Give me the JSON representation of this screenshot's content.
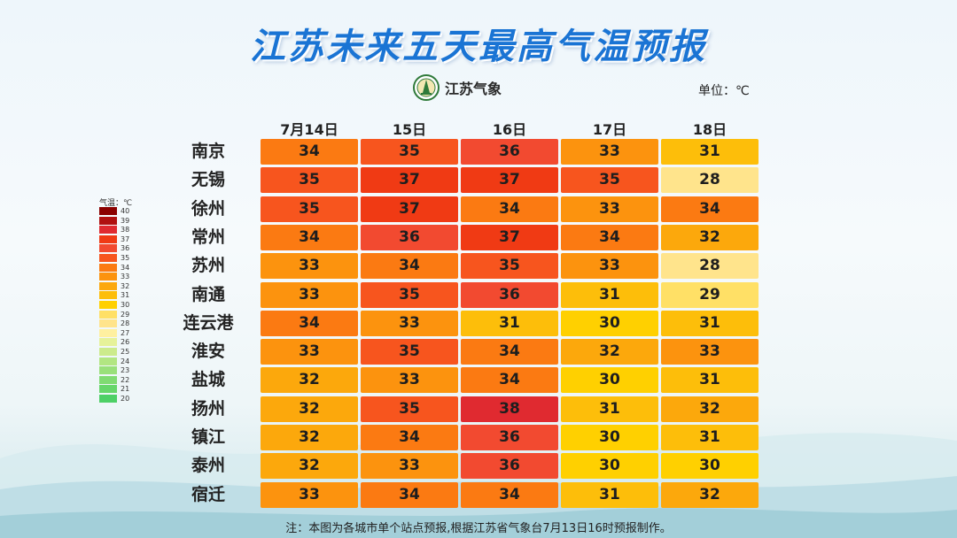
{
  "title": "江苏未来五天最高气温预报",
  "logo": {
    "text": "江苏气象",
    "icon": "jiangsu-meteorology-emblem-icon"
  },
  "unit": "单位：℃",
  "legend": {
    "title": "气温：℃",
    "labels": [
      "40",
      "39",
      "38",
      "37",
      "36",
      "35",
      "34",
      "33",
      "32",
      "31",
      "30",
      "29",
      "28",
      "27",
      "26",
      "25",
      "24",
      "23",
      "22",
      "21",
      "20"
    ]
  },
  "note": "注：本图为各城市单个站点预报,根据江苏省气象台7月13日16时预报制作。",
  "chart_data": {
    "type": "table",
    "title": "江苏未来五天最高气温预报",
    "columns": [
      "7月14日",
      "15日",
      "16日",
      "17日",
      "18日"
    ],
    "rows": [
      "南京",
      "无锡",
      "徐州",
      "常州",
      "苏州",
      "南通",
      "连云港",
      "淮安",
      "盐城",
      "扬州",
      "镇江",
      "泰州",
      "宿迁"
    ],
    "values": [
      [
        34,
        35,
        36,
        33,
        31
      ],
      [
        35,
        37,
        37,
        35,
        28
      ],
      [
        35,
        37,
        34,
        33,
        34
      ],
      [
        34,
        36,
        37,
        34,
        32
      ],
      [
        33,
        34,
        35,
        33,
        28
      ],
      [
        33,
        35,
        36,
        31,
        29
      ],
      [
        34,
        33,
        31,
        30,
        31
      ],
      [
        33,
        35,
        34,
        32,
        33
      ],
      [
        32,
        33,
        34,
        30,
        31
      ],
      [
        32,
        35,
        38,
        31,
        32
      ],
      [
        32,
        34,
        36,
        30,
        31
      ],
      [
        32,
        33,
        36,
        30,
        30
      ],
      [
        33,
        34,
        34,
        31,
        32
      ]
    ],
    "color_scale": {
      "40": "#8b0000",
      "39": "#b01010",
      "38": "#e02a30",
      "37": "#f03a14",
      "36": "#f24a30",
      "35": "#f7551e",
      "34": "#fb7a12",
      "33": "#fc930e",
      "32": "#fca80c",
      "31": "#fdbe0a",
      "30": "#ffd000",
      "29": "#ffe066",
      "28": "#ffe48c",
      "27": "#fff0a0",
      "26": "#e6f29a",
      "25": "#cceb8c",
      "24": "#b2e682",
      "23": "#99e07a",
      "22": "#80db72",
      "21": "#66d66a",
      "20": "#4dd066"
    }
  }
}
